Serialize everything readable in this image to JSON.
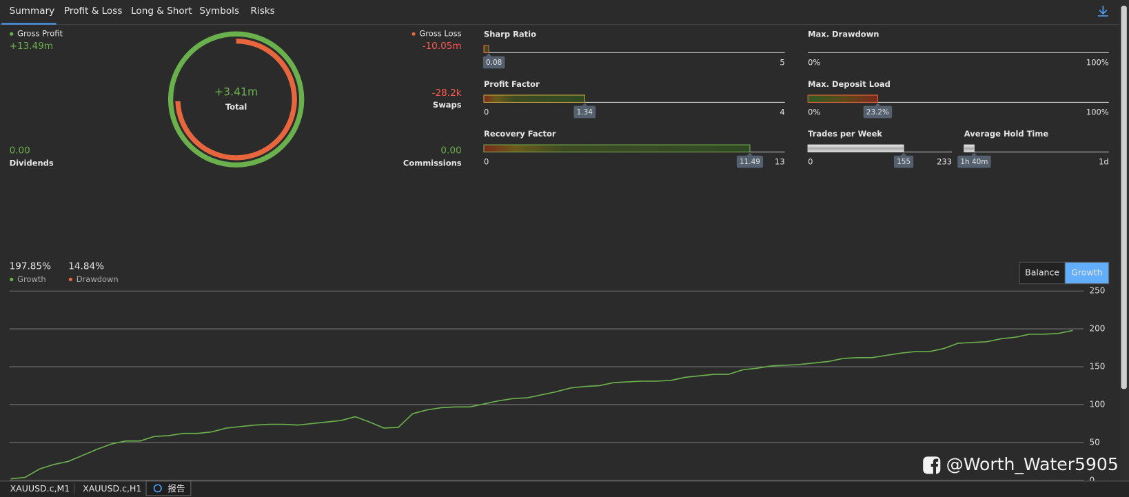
{
  "tabs": [
    "Summary",
    "Profit & Loss",
    "Long & Short",
    "Symbols",
    "Risks"
  ],
  "summary": {
    "gross_profit": {
      "label": "Gross Profit",
      "value": "+13.49m"
    },
    "gross_loss": {
      "label": "Gross Loss",
      "value": "-10.05m"
    },
    "total": {
      "label": "Total",
      "value": "+3.41m"
    },
    "swaps": {
      "label": "Swaps",
      "value": "-28.2k"
    },
    "dividends": {
      "label": "Dividends",
      "value": "0.00"
    },
    "commissions": {
      "label": "Commissions",
      "value": "0.00"
    }
  },
  "gauges": [
    {
      "label": "Sharp Ratio",
      "lim": [
        0,
        5
      ],
      "ticks": [
        5
      ],
      "value": 0.08
    },
    {
      "label": "Profit Factor",
      "lim": [
        0,
        4
      ],
      "ticks": [
        0,
        4
      ],
      "value": 1.34
    },
    {
      "label": "Recovery Factor",
      "lim": [
        0,
        13
      ],
      "ticks": [
        0,
        13
      ],
      "value": 11.49
    },
    {
      "label": "Max. Drawdown",
      "lim": [
        0,
        100
      ],
      "ticks": [
        {
          "value": 0,
          "label": "0%"
        },
        {
          "value": 100,
          "label": "100%"
        }
      ]
    },
    {
      "label": "Max. Deposit Load",
      "lim": [
        0,
        100
      ],
      "ticks": [
        {
          "value": 0,
          "label": "0%"
        },
        {
          "value": 100,
          "label": "100%"
        }
      ],
      "value": 23.2,
      "value_label": "23.2%"
    },
    {
      "label": "Trades per Week",
      "lim": [
        0,
        233
      ],
      "ticks": [
        0,
        233
      ],
      "value": 155
    },
    {
      "label": "Average Hold Time",
      "lim": [
        0,
        1440
      ],
      "ticks": [
        {
          "value": 1440,
          "label": "1d"
        }
      ],
      "value": 100,
      "value_label": "1h 40m"
    }
  ],
  "chart_data": {
    "type": "line",
    "legend": [
      {
        "name": "Growth",
        "label": "197.85%",
        "color": "#6ab04c"
      },
      {
        "name": "Drawdown",
        "label": "14.84%",
        "color": "#e8663d"
      }
    ],
    "buttons": [
      "Balance",
      "Growth"
    ],
    "color": "#6ab04c",
    "values": [
      2,
      4,
      15,
      21,
      25,
      33,
      41,
      48,
      52,
      52,
      58,
      59,
      62,
      62,
      64,
      69,
      71,
      73,
      74,
      74,
      73,
      75,
      77,
      79,
      84,
      77,
      69,
      70,
      88,
      93,
      96,
      97,
      97,
      101,
      105,
      108,
      109,
      113,
      117,
      122,
      124,
      125,
      129,
      130,
      131,
      131,
      132,
      136,
      138,
      140,
      140,
      146,
      148,
      151,
      152,
      153,
      155,
      157,
      161,
      162,
      162,
      165,
      168,
      170,
      170,
      174,
      181,
      182,
      183,
      187,
      189,
      193,
      193,
      194,
      198
    ],
    "ylim": [
      0,
      250
    ],
    "yticks": [
      0,
      50,
      100,
      150,
      200,
      250
    ],
    "grid": true
  },
  "footer_tabs": [
    "XAUUSD.c,M1",
    "XAUUSD.c,H1",
    "报告"
  ],
  "watermark": "@Worth_Water5905"
}
